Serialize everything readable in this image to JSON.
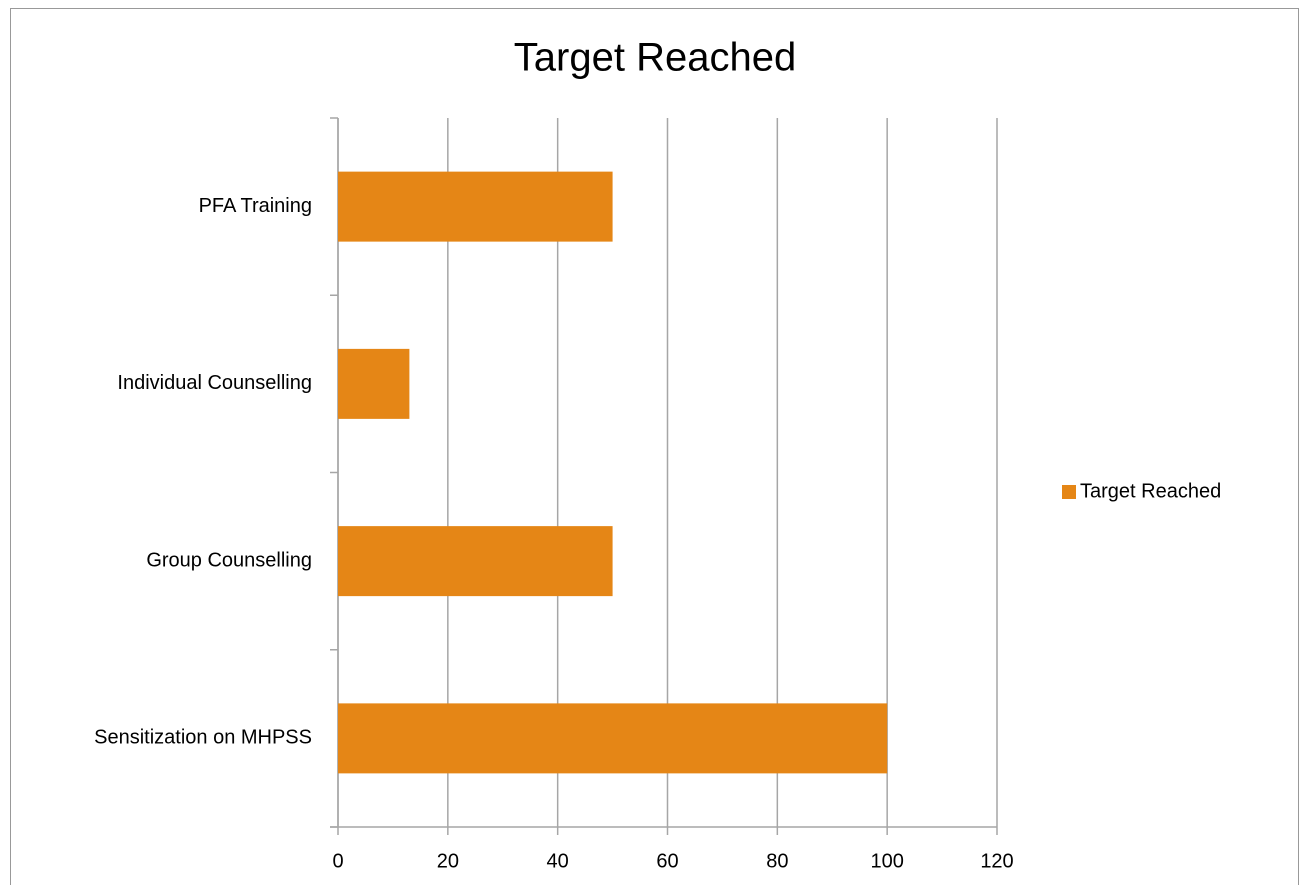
{
  "chart_data": {
    "type": "bar",
    "orientation": "horizontal",
    "title": "Target Reached",
    "categories": [
      "PFA Training",
      "Individual Counselling",
      "Group Counselling",
      "Sensitization on MHPSS"
    ],
    "series": [
      {
        "name": "Target Reached",
        "color": "#e58616",
        "values": [
          50,
          13,
          50,
          100
        ]
      }
    ],
    "xlim": [
      0,
      120
    ],
    "xticks": [
      0,
      20,
      40,
      60,
      80,
      100,
      120
    ],
    "grid": true,
    "legend": "right"
  }
}
